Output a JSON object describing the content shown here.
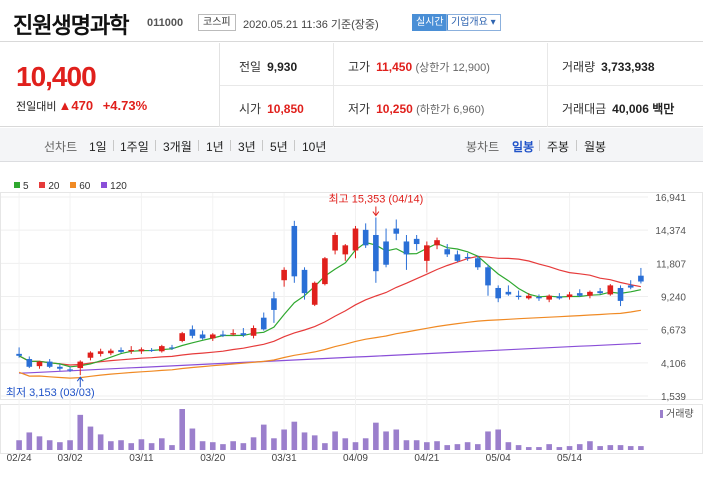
{
  "header": {
    "company_name": "진원생명과학",
    "code": "011000",
    "market": "코스피",
    "datetime": "2020.05.21 11:36 기준(장중)",
    "live": "실시간",
    "company_info": "기업개요",
    "company_info_arrow": "▾"
  },
  "price": {
    "current": "10,400",
    "change_label": "전일대비",
    "change_symbol": "▲",
    "change": "470",
    "change_rate": "+4.73%",
    "color_up": "#e0201c"
  },
  "stats": {
    "prev_close": {
      "label": "전일",
      "value": "9,930"
    },
    "high": {
      "label": "고가",
      "value": "11,450",
      "sub": "(상한가 12,900)"
    },
    "volume": {
      "label": "거래량",
      "value": "3,733,938"
    },
    "open": {
      "label": "시가",
      "value": "10,850"
    },
    "low": {
      "label": "저가",
      "value": "10,250",
      "sub": "(하한가 6,960)"
    },
    "amount": {
      "label": "거래대금",
      "value": "40,006",
      "unit": "백만"
    }
  },
  "period_bar": {
    "line_chart_label": "선차트",
    "line_periods": [
      "1일",
      "1주일",
      "3개월",
      "1년",
      "3년",
      "5년",
      "10년"
    ],
    "candle_chart_label": "봉차트",
    "candle_periods": [
      "일봉",
      "주봉",
      "월봉"
    ],
    "selected_candle": "일봉"
  },
  "chart_data": {
    "type": "candlestick",
    "legend": [
      {
        "name": "5",
        "color": "#2fa82f"
      },
      {
        "name": "20",
        "color": "#e63b3b"
      },
      {
        "name": "60",
        "color": "#f08a24"
      },
      {
        "name": "120",
        "color": "#8a4fd8"
      }
    ],
    "volume_label": "거래량",
    "y_ticks": [
      16941,
      14374,
      11807,
      9240,
      6673,
      4106,
      1539
    ],
    "y_tick_labels": [
      "16,941",
      "14,374",
      "11,807",
      "9,240",
      "6,673",
      "4,106",
      "1,539"
    ],
    "y_range": [
      1539,
      16941
    ],
    "x_tick_labels": [
      "02/24",
      "03/02",
      "03/11",
      "03/20",
      "03/31",
      "04/09",
      "04/21",
      "05/04",
      "05/14"
    ],
    "x_tick_index": [
      0,
      5,
      12,
      19,
      26,
      33,
      40,
      47,
      54
    ],
    "high_annotation": "최고 15,353 (04/14)",
    "high_index": 35,
    "low_annotation": "최저 3,153 (03/03)",
    "low_index": 6,
    "candles": [
      [
        4800,
        5300,
        4500,
        4650
      ],
      [
        4400,
        4600,
        3700,
        3800
      ],
      [
        3850,
        4250,
        3650,
        4200
      ],
      [
        4200,
        4400,
        3700,
        3800
      ],
      [
        3800,
        4000,
        3500,
        3650
      ],
      [
        3600,
        3800,
        3400,
        3550
      ],
      [
        3700,
        4300,
        3153,
        4200
      ],
      [
        4500,
        5000,
        4300,
        4900
      ],
      [
        4800,
        5200,
        4600,
        5000
      ],
      [
        4850,
        5200,
        4700,
        5050
      ],
      [
        5100,
        5300,
        4850,
        4950
      ],
      [
        5000,
        5400,
        4800,
        5100
      ],
      [
        5000,
        5300,
        4800,
        5150
      ],
      [
        5100,
        5250,
        4950,
        5050
      ],
      [
        5000,
        5500,
        4900,
        5400
      ],
      [
        5300,
        5500,
        5100,
        5250
      ],
      [
        5800,
        6500,
        5700,
        6400
      ],
      [
        6700,
        7000,
        6000,
        6200
      ],
      [
        6300,
        6600,
        5900,
        6000
      ],
      [
        6000,
        6400,
        5800,
        6300
      ],
      [
        6300,
        6600,
        6100,
        6200
      ],
      [
        6300,
        6700,
        6200,
        6400
      ],
      [
        6400,
        6800,
        6100,
        6250
      ],
      [
        6200,
        7000,
        6000,
        6800
      ],
      [
        7600,
        8000,
        6600,
        6700
      ],
      [
        9100,
        9600,
        7200,
        8200
      ],
      [
        10500,
        11500,
        10000,
        11300
      ],
      [
        14700,
        15100,
        10300,
        10800
      ],
      [
        11300,
        11500,
        9000,
        9500
      ],
      [
        8600,
        10400,
        8500,
        10300
      ],
      [
        10200,
        12300,
        10100,
        12200
      ],
      [
        12800,
        14200,
        12500,
        14000
      ],
      [
        12500,
        13300,
        12000,
        13200
      ],
      [
        12800,
        14700,
        12200,
        14500
      ],
      [
        14400,
        14900,
        13000,
        13200
      ],
      [
        14000,
        15353,
        10300,
        11200
      ],
      [
        13500,
        14500,
        11500,
        11700
      ],
      [
        14500,
        15200,
        13600,
        14100
      ],
      [
        13500,
        14000,
        11300,
        12500
      ],
      [
        13700,
        14000,
        12800,
        13300
      ],
      [
        12000,
        13500,
        11100,
        13200
      ],
      [
        13200,
        13800,
        12900,
        13600
      ],
      [
        12900,
        13300,
        12300,
        12500
      ],
      [
        12500,
        12800,
        11900,
        12000
      ],
      [
        12300,
        12600,
        12000,
        12200
      ],
      [
        12200,
        12400,
        11300,
        11500
      ],
      [
        11500,
        11700,
        9300,
        10100
      ],
      [
        9900,
        10100,
        8800,
        9100
      ],
      [
        9600,
        10100,
        9300,
        9400
      ],
      [
        9300,
        9700,
        9000,
        9200
      ],
      [
        9100,
        9500,
        9000,
        9300
      ],
      [
        9200,
        9400,
        8900,
        9100
      ],
      [
        9000,
        9400,
        8800,
        9300
      ],
      [
        9250,
        9500,
        9000,
        9100
      ],
      [
        9200,
        9600,
        9000,
        9400
      ],
      [
        9500,
        9800,
        9200,
        9300
      ],
      [
        9300,
        9700,
        9100,
        9600
      ],
      [
        9650,
        9900,
        9400,
        9500
      ],
      [
        9400,
        10200,
        9300,
        10100
      ],
      [
        9900,
        10100,
        8500,
        8900
      ],
      [
        10100,
        10500,
        9800,
        9930
      ],
      [
        10850,
        11450,
        10250,
        10400
      ]
    ],
    "volumes": [
      1.0,
      1.8,
      1.4,
      1.0,
      0.8,
      1.0,
      3.6,
      2.4,
      1.6,
      0.9,
      1.0,
      0.7,
      1.1,
      0.7,
      1.2,
      0.5,
      4.2,
      2.2,
      0.9,
      0.8,
      0.6,
      0.9,
      0.7,
      1.3,
      2.6,
      1.2,
      2.1,
      2.9,
      1.8,
      1.5,
      0.7,
      1.9,
      1.2,
      0.8,
      1.2,
      2.8,
      1.9,
      2.1,
      1.0,
      1.0,
      0.8,
      0.9,
      0.5,
      0.6,
      0.8,
      0.6,
      1.9,
      2.1,
      0.8,
      0.5,
      0.3,
      0.3,
      0.6,
      0.3,
      0.4,
      0.6,
      0.9,
      0.4,
      0.5,
      0.5,
      0.4,
      0.4
    ]
  }
}
